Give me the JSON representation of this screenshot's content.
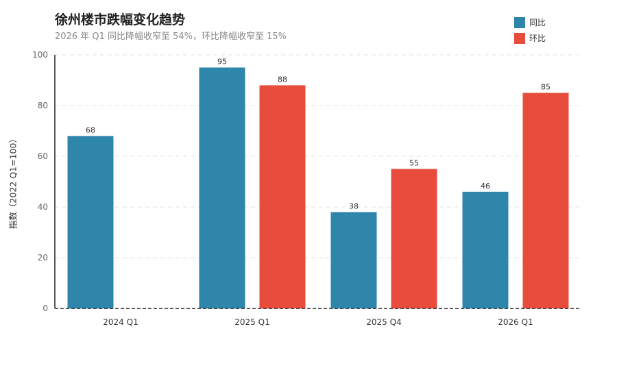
{
  "chart_data": {
    "type": "bar",
    "title": "徐州楼市跌幅变化趋势",
    "subtitle": "2026 年 Q1 同比降幅收窄至 54%，环比降幅收窄至 15%",
    "xlabel": "",
    "ylabel": "指数（2022 Q1=100）",
    "ylim": [
      0,
      100
    ],
    "yticks": [
      0,
      20,
      40,
      60,
      80,
      100
    ],
    "categories": [
      "2024 Q1",
      "2025 Q1",
      "2025 Q4",
      "2026 Q1"
    ],
    "series": [
      {
        "name": "同比",
        "color": "#2e86ab",
        "values": [
          68,
          95,
          38,
          46
        ]
      },
      {
        "name": "环比",
        "color": "#e74c3c",
        "values": [
          null,
          88,
          55,
          85
        ]
      }
    ],
    "grid": true,
    "legend": "top-right"
  }
}
